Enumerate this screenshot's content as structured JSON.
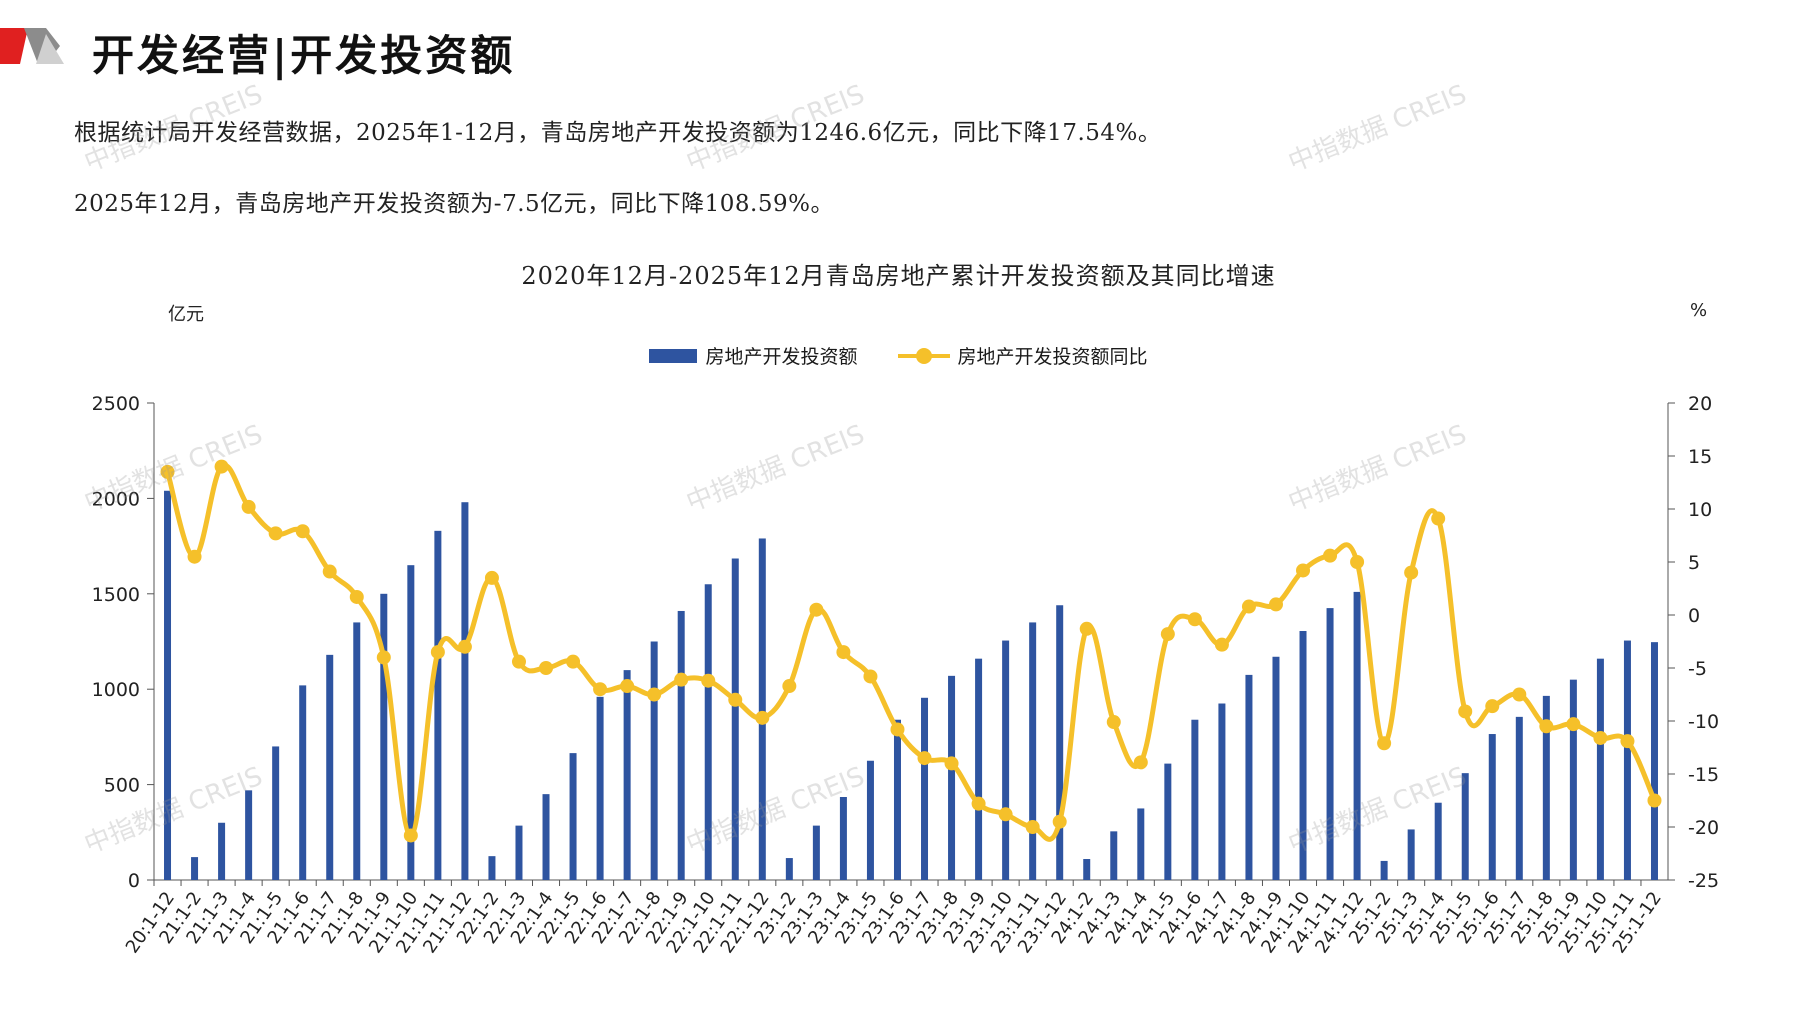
{
  "page": {
    "title": "开发经营|开发投资额",
    "summary_line_1": "根据统计局开发经营数据，2025年1-12月，青岛房地产开发投资额为1246.6亿元，同比下降17.54%。",
    "summary_line_2": "2025年12月，青岛房地产开发投资额为-7.5亿元，同比下降108.59%。",
    "watermark": "中指数据 CREIS",
    "colors": {
      "accent_red": "#E02020",
      "bar": "#2E54A0",
      "line": "#F5C02A"
    }
  },
  "chart_data": {
    "type": "bar",
    "title": "2020年12月-2025年12月青岛房地产累计开发投资额及其同比增速",
    "ylabel": "亿元",
    "y2label": "%",
    "ylim": [
      0,
      2500
    ],
    "y2lim": [
      -25,
      20
    ],
    "yticks": [
      0,
      500,
      1000,
      1500,
      2000,
      2500
    ],
    "y2ticks": [
      -25,
      -20,
      -15,
      -10,
      -5,
      0,
      5,
      10,
      15,
      20
    ],
    "grid": false,
    "legend_position": "top-center",
    "categories": [
      "20:1-12",
      "21:1-2",
      "21:1-3",
      "21:1-4",
      "21:1-5",
      "21:1-6",
      "21:1-7",
      "21:1-8",
      "21:1-9",
      "21:1-10",
      "21:1-11",
      "21:1-12",
      "22:1-2",
      "22:1-3",
      "22:1-4",
      "22:1-5",
      "22:1-6",
      "22:1-7",
      "22:1-8",
      "22:1-9",
      "22:1-10",
      "22:1-11",
      "22:1-12",
      "23:1-2",
      "23:1-3",
      "23:1-4",
      "23:1-5",
      "23:1-6",
      "23:1-7",
      "23:1-8",
      "23:1-9",
      "23:1-10",
      "23:1-11",
      "23:1-12",
      "24:1-2",
      "24:1-3",
      "24:1-4",
      "24:1-5",
      "24:1-6",
      "24:1-7",
      "24:1-8",
      "24:1-9",
      "24:1-10",
      "24:1-11",
      "24:1-12",
      "25:1-2",
      "25:1-3",
      "25:1-4",
      "25:1-5",
      "25:1-6",
      "25:1-7",
      "25:1-8",
      "25:1-9",
      "25:1-10",
      "25:1-11",
      "25:1-12"
    ],
    "series": [
      {
        "name": "房地产开发投资额",
        "type": "bar",
        "axis": "left",
        "values": [
          2040,
          120,
          300,
          470,
          700,
          1020,
          1180,
          1350,
          1500,
          1650,
          1830,
          1980,
          125,
          285,
          450,
          665,
          960,
          1100,
          1250,
          1410,
          1550,
          1685,
          1790,
          115,
          285,
          435,
          625,
          840,
          955,
          1070,
          1160,
          1255,
          1350,
          1440,
          110,
          255,
          375,
          610,
          840,
          925,
          1075,
          1170,
          1305,
          1425,
          1510,
          100,
          265,
          405,
          560,
          765,
          855,
          965,
          1050,
          1160,
          1255,
          1246.6
        ]
      },
      {
        "name": "房地产开发投资额同比",
        "type": "line",
        "axis": "right",
        "values": [
          13.5,
          5.5,
          14.0,
          10.2,
          7.7,
          7.9,
          4.1,
          1.7,
          -4.0,
          -20.8,
          -3.5,
          -3.0,
          3.5,
          -4.4,
          -5.0,
          -4.4,
          -7.0,
          -6.7,
          -7.5,
          -6.1,
          -6.2,
          -8.0,
          -9.7,
          -6.7,
          0.5,
          -3.5,
          -5.8,
          -10.8,
          -13.5,
          -14.0,
          -17.8,
          -18.8,
          -20.0,
          -19.5,
          -1.3,
          -10.1,
          -13.9,
          -1.8,
          -0.4,
          -2.8,
          0.8,
          1.0,
          4.2,
          5.6,
          5.0,
          -12.1,
          4.0,
          9.1,
          -9.1,
          -8.6,
          -7.5,
          -10.5,
          -10.3,
          -11.6,
          -11.9,
          -17.5
        ]
      }
    ]
  }
}
